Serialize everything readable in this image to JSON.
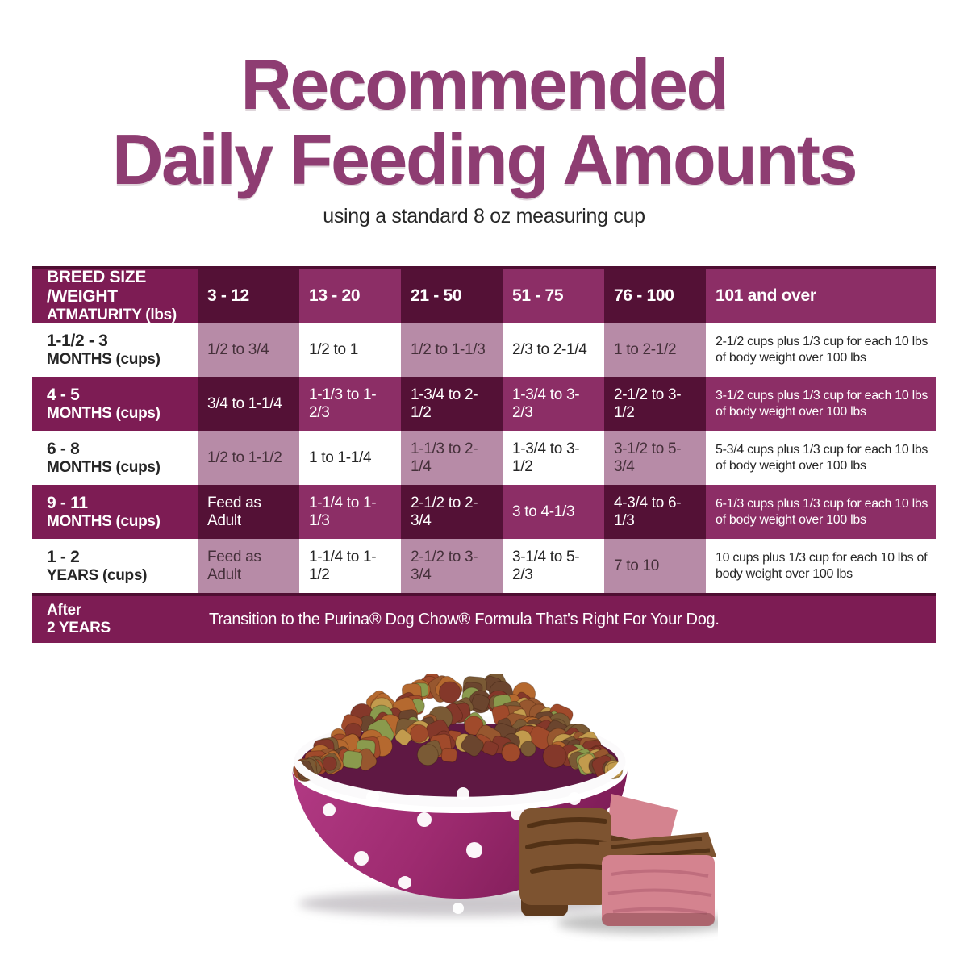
{
  "page": {
    "title_line1": "Recommended",
    "title_line2": "Daily Feeding Amounts",
    "subtitle": "using a standard 8 oz measuring cup"
  },
  "chart_data": {
    "type": "table",
    "title": "Recommended Daily Feeding Amounts",
    "subtitle": "using a standard 8 oz measuring cup",
    "corner_header": [
      "BREED SIZE /WEIGHT",
      "ATMATURITY (lbs)"
    ],
    "columns": [
      "3 - 12",
      "13 - 20",
      "21 - 50",
      "51 - 75",
      "76 - 100",
      "101 and over"
    ],
    "rows": [
      {
        "label_line1": "1-1/2 - 3",
        "label_line2": "MONTHS (cups)",
        "cells": [
          "1/2 to 3/4",
          "1/2 to 1",
          "1/2 to 1-1/3",
          "2/3 to 2-1/4",
          "1 to 2-1/2",
          "2-1/2 cups plus 1/3 cup for each 10 lbs of body weight over 100 lbs"
        ]
      },
      {
        "label_line1": "4 - 5",
        "label_line2": "MONTHS (cups)",
        "cells": [
          "3/4 to 1-1/4",
          "1-1/3 to 1-2/3",
          "1-3/4 to 2-1/2",
          "1-3/4 to 3-2/3",
          "2-1/2 to 3-1/2",
          "3-1/2 cups plus 1/3 cup for each 10 lbs of body weight over 100 lbs"
        ]
      },
      {
        "label_line1": "6 - 8",
        "label_line2": "MONTHS (cups)",
        "cells": [
          "1/2 to 1-1/2",
          "1 to 1-1/4",
          "1-1/3 to 2-1/4",
          "1-3/4 to 3-1/2",
          "3-1/2 to 5-3/4",
          "5-3/4 cups plus 1/3 cup for each 10 lbs of body weight over 100 lbs"
        ]
      },
      {
        "label_line1": "9 - 11",
        "label_line2": "MONTHS (cups)",
        "cells": [
          "Feed as Adult",
          "1-1/4 to 1-1/3",
          "2-1/2 to 2-3/4",
          "3 to 4-1/3",
          "4-3/4 to 6-1/3",
          "6-1/3 cups plus 1/3 cup for each 10 lbs of body weight over 100 lbs"
        ]
      },
      {
        "label_line1": "1 - 2",
        "label_line2": "YEARS (cups)",
        "cells": [
          "Feed as Adult",
          "1-1/4 to 1-1/2",
          "2-1/2 to 3-3/4",
          "3-1/4 to 5-2/3",
          "7 to 10",
          "10 cups plus 1/3 cup for each 10 lbs of body weight over 100 lbs"
        ]
      }
    ],
    "footer": {
      "label_line1": "After",
      "label_line2": "2 YEARS",
      "text": "Transition to the Purina® Dog Chow® Formula That's Right For Your Dog."
    }
  },
  "colors": {
    "title": "#8e3d72",
    "label_purple": "#7d1c54",
    "dark_cell": "#541136",
    "medium_cell": "#8c2e66",
    "mauve_cell": "#b78ba7",
    "table_top_edge": "#4f0e32"
  },
  "illustration": {
    "name": "polka-dot-dog-bowl-with-kibble-and-beef",
    "bowl_gradient": [
      "#b23a84",
      "#9e2b70",
      "#7d1c56"
    ],
    "bowl_interior": "#5f1843",
    "bowl_rim": "#fbfafb",
    "bowl_dot_color": "#ffffff",
    "kibble_colors": [
      "#a04a2b",
      "#6b452e",
      "#c29b4d",
      "#8a9a4d",
      "#84382a",
      "#b5692f",
      "#97572f",
      "#7a5a35"
    ],
    "meat_sear": "#7d5330",
    "meat_sear_dark": "#5e3a1d",
    "meat_pink": "#d4838f"
  }
}
